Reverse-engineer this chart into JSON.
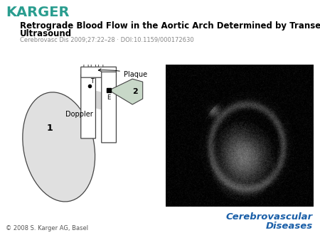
{
  "bg_color": "#ffffff",
  "karger_color": "#2a9d8f",
  "title_line1": "Retrograde Blood Flow in the Aortic Arch Determined by Transesophageal Doppler",
  "title_line2": "Ultrasound",
  "subtitle": "Cerebrovasc Dis 2009;27:22–28 · DOI:10.1159/000172630",
  "footer_left": "© 2008 S. Karger AG, Basel",
  "journal_name_line1": "Cerebrovascular",
  "journal_name_line2": "Diseases",
  "journal_color": "#1a5fa8",
  "karger_text": "KARGER",
  "karger_fontsize": 14,
  "title_fontsize": 8.5,
  "subtitle_fontsize": 6.0,
  "footer_fontsize": 6.0,
  "journal_fontsize": 9.5
}
